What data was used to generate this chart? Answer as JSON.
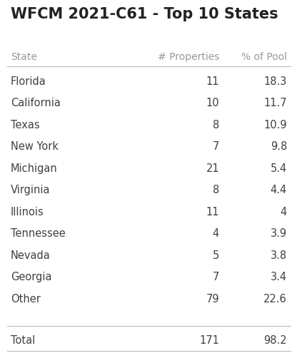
{
  "title": "WFCM 2021-C61 - Top 10 States",
  "title_fontsize": 15,
  "title_fontweight": "bold",
  "header": [
    "State",
    "# Properties",
    "% of Pool"
  ],
  "rows": [
    [
      "Florida",
      "11",
      "18.3"
    ],
    [
      "California",
      "10",
      "11.7"
    ],
    [
      "Texas",
      "8",
      "10.9"
    ],
    [
      "New York",
      "7",
      "9.8"
    ],
    [
      "Michigan",
      "21",
      "5.4"
    ],
    [
      "Virginia",
      "8",
      "4.4"
    ],
    [
      "Illinois",
      "11",
      "4"
    ],
    [
      "Tennessee",
      "4",
      "3.9"
    ],
    [
      "Nevada",
      "5",
      "3.8"
    ],
    [
      "Georgia",
      "7",
      "3.4"
    ],
    [
      "Other",
      "79",
      "22.6"
    ]
  ],
  "total_row": [
    "Total",
    "171",
    "98.2"
  ],
  "header_color": "#999999",
  "data_color": "#404040",
  "line_color": "#bbbbbb",
  "bg_color": "#ffffff",
  "row_font_size": 10.5,
  "header_font_size": 10,
  "title_color": "#222222"
}
